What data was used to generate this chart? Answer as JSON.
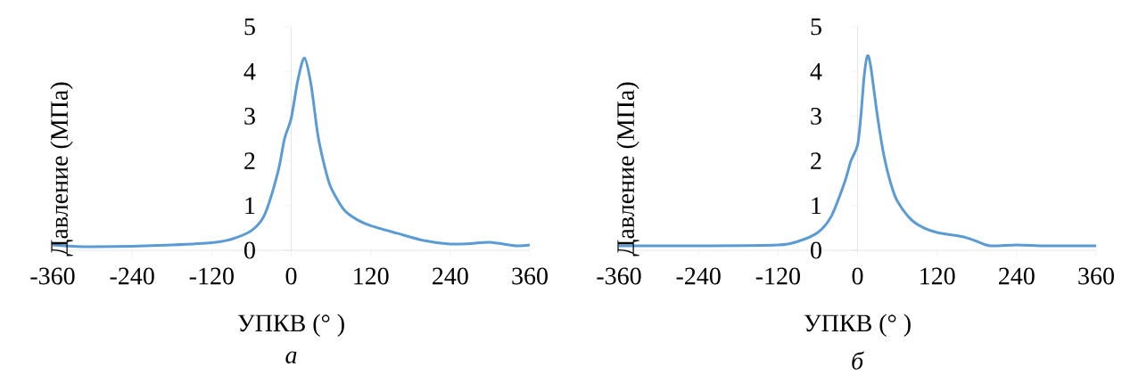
{
  "chart_data": [
    {
      "type": "line",
      "xlabel": "УПКВ (° )",
      "ylabel": "Давление (МПа)",
      "annotations": [
        "*а*"
      ],
      "xlim": [
        -360,
        360
      ],
      "ylim": [
        0,
        5
      ],
      "xticks": [
        -360,
        -240,
        -120,
        0,
        120,
        240,
        360
      ],
      "yticks": [
        0,
        1,
        2,
        3,
        4,
        5
      ],
      "grid": false,
      "x": [
        -360,
        -330,
        -300,
        -240,
        -180,
        -120,
        -90,
        -60,
        -40,
        -20,
        -10,
        0,
        10,
        20,
        30,
        40,
        50,
        60,
        80,
        100,
        120,
        160,
        200,
        240,
        270,
        300,
        340,
        360
      ],
      "series": [
        {
          "color": "#5b9bd5",
          "values": [
            0.12,
            0.09,
            0.08,
            0.09,
            0.12,
            0.17,
            0.25,
            0.44,
            0.8,
            1.75,
            2.5,
            2.95,
            3.8,
            4.3,
            3.7,
            2.6,
            1.9,
            1.4,
            0.9,
            0.68,
            0.55,
            0.38,
            0.22,
            0.14,
            0.15,
            0.18,
            0.1,
            0.12
          ]
        }
      ]
    },
    {
      "type": "line",
      "xlabel": "УПКВ (° )",
      "ylabel": "Давление (МПа)",
      "annotations": [
        "*б*"
      ],
      "xlim": [
        -360,
        360
      ],
      "ylim": [
        0,
        5
      ],
      "xticks": [
        -360,
        -240,
        -120,
        0,
        120,
        240,
        360
      ],
      "yticks": [
        0,
        1,
        2,
        3,
        4,
        5
      ],
      "grid": false,
      "x": [
        -360,
        -240,
        -120,
        -90,
        -60,
        -40,
        -20,
        -10,
        0,
        5,
        10,
        15,
        20,
        30,
        40,
        50,
        60,
        80,
        100,
        120,
        160,
        180,
        200,
        240,
        280,
        320,
        360
      ],
      "series": [
        {
          "color": "#5b9bd5",
          "values": [
            0.1,
            0.1,
            0.12,
            0.2,
            0.4,
            0.75,
            1.5,
            2.0,
            2.35,
            3.0,
            3.9,
            4.35,
            4.1,
            3.0,
            2.1,
            1.5,
            1.1,
            0.7,
            0.5,
            0.4,
            0.3,
            0.2,
            0.1,
            0.12,
            0.1,
            0.1,
            0.1
          ]
        }
      ]
    }
  ]
}
